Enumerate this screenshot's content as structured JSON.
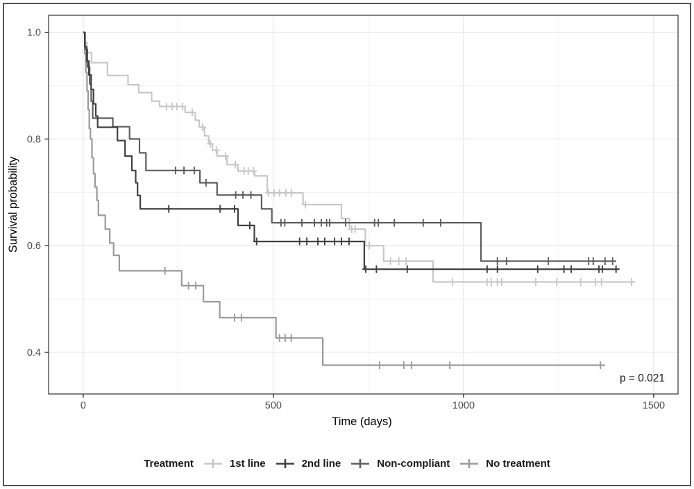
{
  "figure": {
    "border_color": "#525252",
    "background": "#ffffff"
  },
  "chart_data": {
    "type": "line",
    "subtype": "kaplan-meier-step",
    "title": "",
    "xlabel": "Time (days)",
    "ylabel": "Survival probability",
    "x_ticks": [
      0,
      500,
      1000,
      1500
    ],
    "x_tick_labels": [
      "0",
      "500",
      "1000",
      "1500"
    ],
    "x_minor_ticks": [
      250,
      750,
      1250
    ],
    "y_ticks": [
      1.0,
      0.8,
      0.6,
      0.4
    ],
    "y_tick_labels": [
      "1.0",
      "0.8",
      "0.6",
      "0.4"
    ],
    "y_minor_ticks": [
      0.9,
      0.7,
      0.5
    ],
    "xlim": [
      -91,
      1564
    ],
    "ylim": [
      0.322,
      1.032
    ],
    "grid": true,
    "legend_position": "bottom",
    "legend_title": "Treatment",
    "annotation": {
      "text": "p = 0.021",
      "day": 1470,
      "prob": 0.352
    },
    "colors": {
      "axis_text": "#4d4d4d",
      "axis_title": "#000000",
      "panel_border": "#4d4d4d",
      "grid_major": "#e9e9e9",
      "grid_minor": "#f2f2f2"
    },
    "series": [
      {
        "name": "1st line",
        "color": "#c7c7c7",
        "end": 1451,
        "steps": [
          [
            0,
            1.0
          ],
          [
            4,
            0.981
          ],
          [
            10,
            0.962
          ],
          [
            22,
            0.943
          ],
          [
            64,
            0.919
          ],
          [
            118,
            0.902
          ],
          [
            146,
            0.887
          ],
          [
            180,
            0.871
          ],
          [
            201,
            0.861
          ],
          [
            268,
            0.85
          ],
          [
            295,
            0.835
          ],
          [
            305,
            0.822
          ],
          [
            319,
            0.806
          ],
          [
            330,
            0.791
          ],
          [
            340,
            0.779
          ],
          [
            352,
            0.768
          ],
          [
            378,
            0.752
          ],
          [
            407,
            0.74
          ],
          [
            451,
            0.731
          ],
          [
            484,
            0.699
          ],
          [
            578,
            0.677
          ],
          [
            679,
            0.651
          ],
          [
            700,
            0.631
          ],
          [
            742,
            0.6
          ],
          [
            790,
            0.571
          ],
          [
            920,
            0.532
          ]
        ],
        "censor_days": [
          219,
          234,
          246,
          261,
          287,
          314,
          334,
          350,
          374,
          400,
          423,
          434,
          448,
          487,
          502,
          516,
          533,
          547,
          584,
          706,
          715,
          752,
          808,
          830,
          849,
          971,
          1062,
          1073,
          1089,
          1100,
          1190,
          1245,
          1308,
          1347,
          1363,
          1442
        ]
      },
      {
        "name": "2nd line",
        "color": "#404040",
        "end": 1410,
        "steps": [
          [
            0,
            1.0
          ],
          [
            4,
            0.973
          ],
          [
            9,
            0.946
          ],
          [
            15,
            0.92
          ],
          [
            21,
            0.893
          ],
          [
            27,
            0.866
          ],
          [
            33,
            0.843
          ],
          [
            38,
            0.822
          ],
          [
            90,
            0.797
          ],
          [
            110,
            0.768
          ],
          [
            128,
            0.741
          ],
          [
            138,
            0.718
          ],
          [
            143,
            0.694
          ],
          [
            150,
            0.669
          ],
          [
            407,
            0.638
          ],
          [
            450,
            0.608
          ],
          [
            739,
            0.556
          ]
        ],
        "censor_days": [
          225,
          360,
          398,
          438,
          456,
          569,
          588,
          617,
          635,
          661,
          679,
          699,
          743,
          771,
          852,
          1062,
          1089,
          1195,
          1264,
          1283,
          1356,
          1365,
          1401
        ]
      },
      {
        "name": "Non-compliant",
        "color": "#5e5e5e",
        "end": 1401,
        "steps": [
          [
            0,
            1.0
          ],
          [
            5,
            0.968
          ],
          [
            11,
            0.935
          ],
          [
            17,
            0.903
          ],
          [
            21,
            0.871
          ],
          [
            25,
            0.839
          ],
          [
            78,
            0.823
          ],
          [
            122,
            0.8
          ],
          [
            148,
            0.774
          ],
          [
            165,
            0.741
          ],
          [
            307,
            0.718
          ],
          [
            352,
            0.695
          ],
          [
            469,
            0.669
          ],
          [
            496,
            0.643
          ],
          [
            1046,
            0.571
          ]
        ],
        "censor_days": [
          243,
          265,
          292,
          323,
          401,
          420,
          441,
          520,
          530,
          575,
          608,
          626,
          640,
          648,
          690,
          766,
          776,
          818,
          894,
          940,
          1089,
          1113,
          1223,
          1329,
          1341,
          1372,
          1392
        ]
      },
      {
        "name": "No treatment",
        "color": "#9a9a9a",
        "end": 1372,
        "steps": [
          [
            0,
            1.0
          ],
          [
            4,
            0.96
          ],
          [
            7,
            0.925
          ],
          [
            10,
            0.89
          ],
          [
            13,
            0.855
          ],
          [
            16,
            0.82
          ],
          [
            19,
            0.8
          ],
          [
            23,
            0.765
          ],
          [
            27,
            0.735
          ],
          [
            31,
            0.71
          ],
          [
            36,
            0.685
          ],
          [
            40,
            0.657
          ],
          [
            58,
            0.631
          ],
          [
            70,
            0.605
          ],
          [
            80,
            0.582
          ],
          [
            95,
            0.553
          ],
          [
            259,
            0.525
          ],
          [
            316,
            0.495
          ],
          [
            359,
            0.465
          ],
          [
            507,
            0.427
          ],
          [
            630,
            0.376
          ]
        ],
        "censor_days": [
          215,
          277,
          296,
          398,
          416,
          516,
          531,
          547,
          779,
          843,
          863,
          964,
          1360
        ]
      }
    ]
  }
}
